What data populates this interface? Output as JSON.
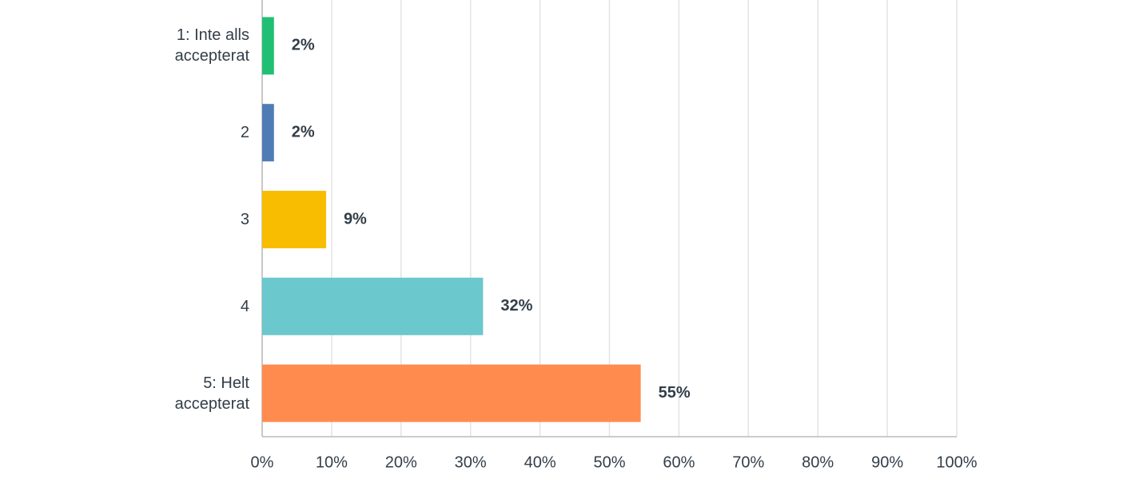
{
  "chart_data": {
    "type": "hbar",
    "categories": [
      "1: Inte alls accepterat",
      "2",
      "3",
      "4",
      "5: Helt accepterat"
    ],
    "values": [
      1.7,
      1.7,
      9.2,
      31.8,
      54.5
    ],
    "value_labels": [
      "2%",
      "2%",
      "9%",
      "32%",
      "55%"
    ],
    "colors": [
      "#21bf73",
      "#507cb6",
      "#f8bd00",
      "#6bc8cd",
      "#ff8b4f"
    ],
    "xlim": [
      0,
      100
    ],
    "xticks": [
      {
        "value": 0,
        "label": "0%"
      },
      {
        "value": 10,
        "label": "10%"
      },
      {
        "value": 20,
        "label": "20%"
      },
      {
        "value": 30,
        "label": "30%"
      },
      {
        "value": 40,
        "label": "40%"
      },
      {
        "value": 50,
        "label": "50%"
      },
      {
        "value": 60,
        "label": "60%"
      },
      {
        "value": 70,
        "label": "70%"
      },
      {
        "value": 80,
        "label": "80%"
      },
      {
        "value": 90,
        "label": "90%"
      },
      {
        "value": 100,
        "label": "100%"
      }
    ],
    "grid": true
  }
}
